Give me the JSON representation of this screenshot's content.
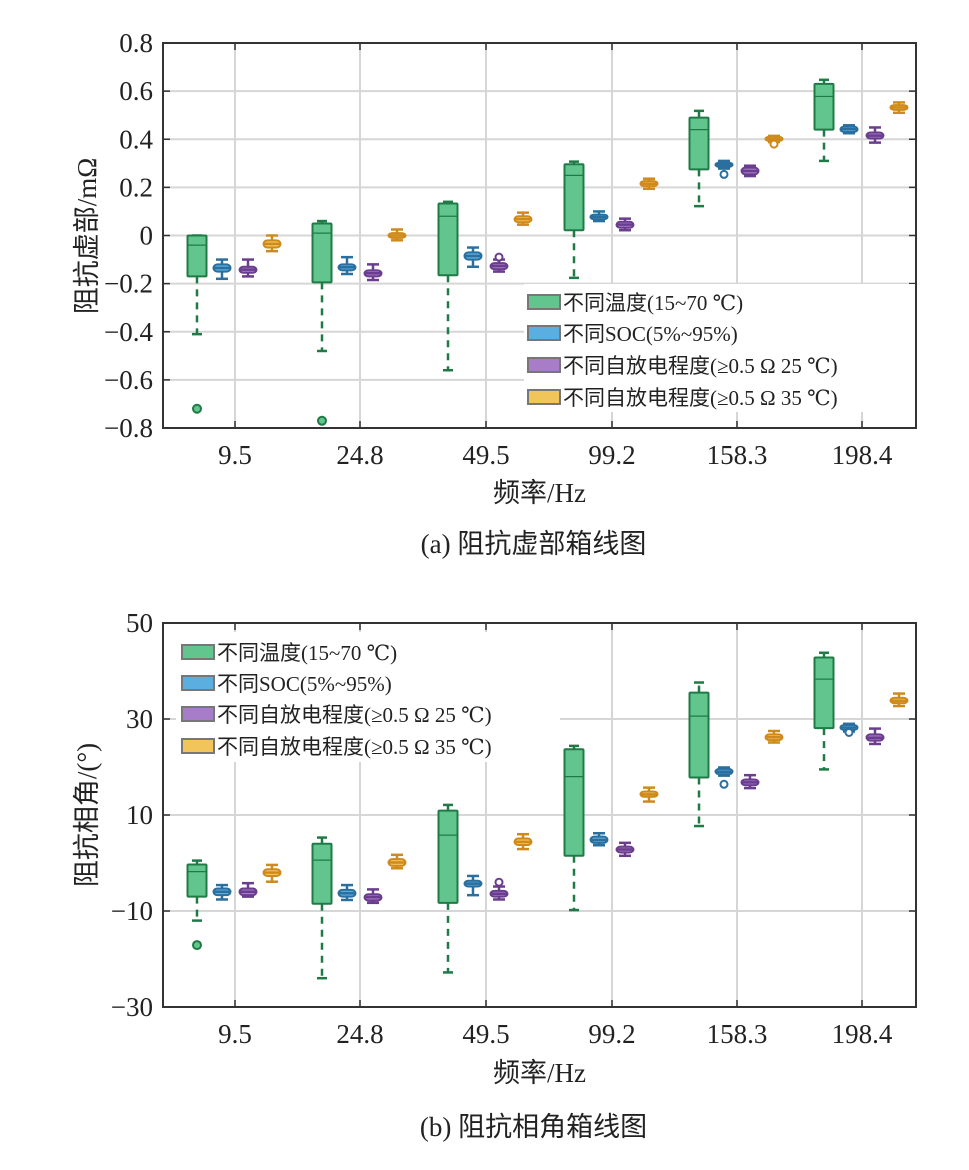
{
  "colors": {
    "temperature": {
      "fill": "#62c58e",
      "stroke": "#1f7a46"
    },
    "soc": {
      "fill": "#5aaee0",
      "stroke": "#2a6f9e"
    },
    "sd25": {
      "fill": "#a77cc8",
      "stroke": "#6a3d8e"
    },
    "sd35": {
      "fill": "#f2c55a",
      "stroke": "#cf8a1c"
    }
  },
  "chart_data": [
    {
      "type": "box",
      "caption": "(a) 阻抗虚部箱线图",
      "xlabel": "频率/Hz",
      "ylabel": "阻抗虚部/mΩ",
      "ylim": [
        -0.8,
        0.8
      ],
      "yticks": [
        "0.8",
        "0.6",
        "0.4",
        "0.2",
        "0",
        "−0.2",
        "−0.4",
        "−0.6",
        "−0.8"
      ],
      "ytick_values": [
        0.8,
        0.6,
        0.4,
        0.2,
        0,
        -0.2,
        -0.4,
        -0.6,
        -0.8
      ],
      "grid": true,
      "legend_position": "lower-right",
      "categories": [
        "9.5",
        "24.8",
        "49.5",
        "99.2",
        "158.3",
        "198.4"
      ],
      "series": [
        {
          "key": "temperature",
          "name": "不同温度(15~70 ℃)",
          "stats": [
            [
              -0.41,
              -0.17,
              -0.04,
              0.0,
              0.0
            ],
            [
              -0.48,
              -0.195,
              0.01,
              0.05,
              0.06
            ],
            [
              -0.56,
              -0.165,
              0.08,
              0.133,
              0.14
            ],
            [
              -0.176,
              0.022,
              0.25,
              0.296,
              0.307
            ],
            [
              0.122,
              0.275,
              0.44,
              0.49,
              0.518
            ],
            [
              0.31,
              0.44,
              0.578,
              0.63,
              0.647
            ]
          ],
          "outliers": [
            [
              -0.72
            ],
            [
              -0.77
            ],
            [],
            [],
            [],
            []
          ]
        },
        {
          "key": "soc",
          "name": "不同SOC(5%~95%)",
          "stats": [
            [
              -0.18,
              -0.15,
              -0.135,
              -0.12,
              -0.1
            ],
            [
              -0.16,
              -0.145,
              -0.132,
              -0.12,
              -0.09
            ],
            [
              -0.13,
              -0.1,
              -0.085,
              -0.07,
              -0.05
            ],
            [
              0.06,
              0.067,
              0.077,
              0.087,
              0.1
            ],
            [
              0.278,
              0.285,
              0.294,
              0.303,
              0.31
            ],
            [
              0.425,
              0.43,
              0.442,
              0.453,
              0.458
            ]
          ],
          "outliers": [
            [],
            [],
            [],
            [],
            [
              0.254
            ],
            []
          ]
        },
        {
          "key": "sd25",
          "name": "不同自放电程度(≥0.5 Ω 25 ℃)",
          "stats": [
            [
              -0.17,
              -0.155,
              -0.142,
              -0.13,
              -0.1
            ],
            [
              -0.185,
              -0.17,
              -0.157,
              -0.145,
              -0.12
            ],
            [
              -0.15,
              -0.14,
              -0.127,
              -0.115,
              -0.1
            ],
            [
              0.022,
              0.032,
              0.045,
              0.057,
              0.07
            ],
            [
              0.247,
              0.254,
              0.268,
              0.282,
              0.29
            ],
            [
              0.386,
              0.403,
              0.415,
              0.428,
              0.449
            ]
          ],
          "outliers": [
            [],
            [],
            [
              -0.09
            ],
            [],
            [],
            []
          ]
        },
        {
          "key": "sd35",
          "name": "不同自放电程度(≥0.5 Ω 35 ℃)",
          "stats": [
            [
              -0.065,
              -0.05,
              -0.035,
              -0.02,
              0.0
            ],
            [
              -0.02,
              -0.01,
              0.0,
              0.01,
              0.025
            ],
            [
              0.045,
              0.055,
              0.068,
              0.08,
              0.095
            ],
            [
              0.194,
              0.205,
              0.215,
              0.226,
              0.236
            ],
            [
              0.388,
              0.393,
              0.401,
              0.41,
              0.414
            ],
            [
              0.51,
              0.522,
              0.532,
              0.542,
              0.553
            ]
          ],
          "outliers": [
            [],
            [],
            [],
            [],
            [
              0.38
            ],
            []
          ]
        }
      ]
    },
    {
      "type": "box",
      "caption": "(b) 阻抗相角箱线图",
      "xlabel": "频率/Hz",
      "ylabel": "阻抗相角/(°)",
      "ylim": [
        -30,
        50
      ],
      "yticks": [
        "50",
        "30",
        "10",
        "−10",
        "−30"
      ],
      "ytick_values": [
        50,
        30,
        10,
        -10,
        -30
      ],
      "grid": true,
      "legend_position": "upper-left",
      "categories": [
        "9.5",
        "24.8",
        "49.5",
        "99.2",
        "158.3",
        "198.4"
      ],
      "series": [
        {
          "key": "temperature",
          "name": "不同温度(15~70 ℃)",
          "stats": [
            [
              -12.0,
              -7.0,
              -1.8,
              -0.3,
              0.5
            ],
            [
              -24.0,
              -8.5,
              0.6,
              4.0,
              5.3
            ],
            [
              -22.8,
              -8.3,
              5.8,
              10.9,
              12.1
            ],
            [
              -9.8,
              1.5,
              18.0,
              23.7,
              24.4
            ],
            [
              7.7,
              17.8,
              30.6,
              35.5,
              37.6
            ],
            [
              19.5,
              28.1,
              38.3,
              42.8,
              43.8
            ]
          ],
          "outliers": [
            [
              -17.1
            ],
            [],
            [],
            [],
            [],
            []
          ]
        },
        {
          "key": "soc",
          "name": "不同SOC(5%~95%)",
          "stats": [
            [
              -7.6,
              -6.7,
              -6.0,
              -5.3,
              -4.6
            ],
            [
              -7.7,
              -7.0,
              -6.3,
              -5.6,
              -4.6
            ],
            [
              -6.7,
              -4.9,
              -4.3,
              -3.7,
              -2.7
            ],
            [
              3.7,
              4.2,
              4.8,
              5.5,
              6.2
            ],
            [
              18.2,
              18.5,
              19.0,
              19.6,
              19.9
            ],
            [
              27.4,
              27.7,
              28.2,
              28.75,
              29.0
            ]
          ],
          "outliers": [
            [],
            [],
            [],
            [],
            [
              16.4
            ],
            [
              27.2
            ]
          ]
        },
        {
          "key": "sd25",
          "name": "不同自放电程度(≥0.5 Ω 25 ℃)",
          "stats": [
            [
              -7.0,
              -6.7,
              -6.0,
              -5.3,
              -4.2
            ],
            [
              -8.3,
              -7.8,
              -7.1,
              -6.5,
              -5.5
            ],
            [
              -7.6,
              -7.0,
              -6.4,
              -5.8,
              -4.9
            ],
            [
              1.5,
              2.2,
              2.8,
              3.4,
              4.2
            ],
            [
              15.6,
              16.2,
              16.8,
              17.4,
              18.3
            ],
            [
              24.8,
              25.5,
              26.1,
              26.8,
              28.0
            ]
          ],
          "outliers": [
            [],
            [],
            [
              -4.0
            ],
            [],
            [],
            []
          ]
        },
        {
          "key": "sd35",
          "name": "不同自放电程度(≥0.5 Ω 35 ℃)",
          "stats": [
            [
              -3.9,
              -2.7,
              -2.0,
              -1.3,
              -0.4
            ],
            [
              -1.1,
              -0.6,
              0.1,
              0.8,
              1.7
            ],
            [
              2.9,
              3.75,
              4.4,
              5.1,
              6.0
            ],
            [
              12.8,
              13.8,
              14.3,
              14.9,
              15.7
            ],
            [
              25.1,
              25.6,
              26.2,
              26.8,
              27.5
            ],
            [
              32.7,
              33.3,
              33.8,
              34.4,
              35.3
            ]
          ],
          "outliers": [
            [],
            [],
            [],
            [],
            [],
            []
          ]
        }
      ]
    }
  ]
}
